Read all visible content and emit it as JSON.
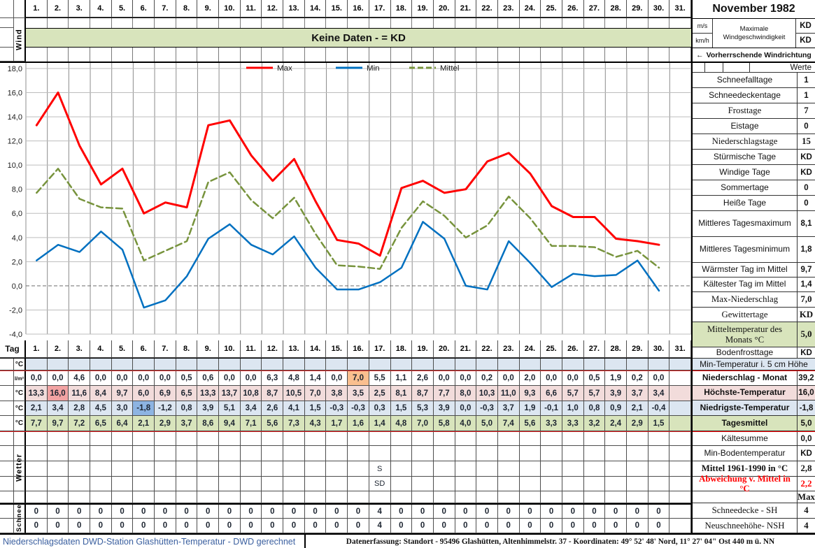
{
  "title": "November 1982",
  "colors": {
    "max_line": "#ff0000",
    "min_line": "#0070c0",
    "mittel_line": "#77933c",
    "banner_green": "#d8e4bc",
    "row_blue": "#dce6f1",
    "row_pink": "#f2dcdb",
    "row_green": "#d8e4bc",
    "hl_red": "#f2a3a3",
    "hl_blue": "#8db4e2",
    "hl_orange": "#fabf8f",
    "footer_blue": "#3a5f9f",
    "warn_red": "#ff0000"
  },
  "top": {
    "wind_label": "Wind",
    "banner": "Keine Daten -  = KD",
    "days": [
      "1.",
      "2.",
      "3.",
      "4.",
      "5.",
      "6.",
      "7.",
      "8.",
      "9.",
      "10.",
      "11.",
      "12.",
      "13.",
      "14.",
      "15.",
      "16.",
      "17.",
      "18.",
      "19.",
      "20.",
      "21.",
      "22.",
      "23.",
      "24.",
      "25.",
      "26.",
      "27.",
      "28.",
      "29.",
      "30.",
      "31."
    ]
  },
  "sidebar_top": {
    "title": "November 1982",
    "unit1": "m/s",
    "unit2": "km/h",
    "wind_label": "Maximale Windgeschwindigkeit",
    "value1": "KD",
    "value2": "KD",
    "arrow": "←",
    "direction": "Vorherrschende Windrichtung"
  },
  "sidebar": {
    "werte_header": "Werte",
    "stats": [
      {
        "label": "Schneefalltage",
        "value": "1"
      },
      {
        "label": "Schneedeckentage",
        "value": "1"
      },
      {
        "label": "Frosttage",
        "value": "7",
        "serif": true
      },
      {
        "label": "Eistage",
        "value": "0"
      },
      {
        "label": "Niederschlagstage",
        "value": "15",
        "serif": true
      },
      {
        "label": "Stürmische Tage",
        "value": "KD"
      },
      {
        "label": "Windige Tage",
        "value": "KD"
      },
      {
        "label": "Sommertage",
        "value": "0"
      },
      {
        "label": "Heiße Tage",
        "value": "0"
      },
      {
        "label": "Mittleres Tagesmaximum",
        "value": "8,1"
      },
      {
        "label": "Mittleres Tagesminimum",
        "value": "1,8"
      },
      {
        "label": "Wärmster Tag im Mittel",
        "value": "9,7"
      },
      {
        "label": "Kältester Tag im Mittel",
        "value": "1,4"
      },
      {
        "label": "Max-Niederschlag",
        "value": "7,0",
        "serif": true
      },
      {
        "label": "Gewittertage",
        "value": "KD",
        "serif": true
      },
      {
        "label": "Mitteltemperatur des Monats °C",
        "value": "5,0",
        "bg": "green",
        "serif": true
      },
      {
        "label": "Bodenfrosttage",
        "value": "KD"
      },
      {
        "label": "Min-Temperatur i. 5 cm Höhe",
        "full": true,
        "bg": "blue"
      },
      {
        "label": "Niederschlag - Monat",
        "value": "39,2",
        "red_top": true,
        "bold": true
      },
      {
        "label": "Höchste-Temperatur",
        "value": "16,0",
        "bg": "pink",
        "bold": true
      },
      {
        "label": "Niedrigste-Temperatur",
        "value": "-1,8",
        "bg": "blue",
        "bold": true
      },
      {
        "label": "Tagesmittel",
        "value": "5,0",
        "bg": "green",
        "bold": true
      },
      {
        "label": "Kältesumme",
        "value": "0,0",
        "red_top": true
      },
      {
        "label": "Min-Bodentemperatur",
        "value": "KD"
      },
      {
        "label": "Mittel 1961-1990 in °C",
        "value": "2,8",
        "serif": true,
        "bold": true
      },
      {
        "label": "Abweichung v. Mittel in °C",
        "value": "2,2",
        "serif": true,
        "bold": true,
        "red": true
      },
      {
        "label": "",
        "value": "Max",
        "serif": true,
        "bold": true
      },
      {
        "label": "Schneedecke -  SH",
        "value": "4",
        "serif": true
      },
      {
        "label": "Neuschneehöhe- NSH",
        "value": "4",
        "serif": true
      }
    ]
  },
  "chart_data": {
    "type": "line",
    "x": [
      1,
      2,
      3,
      4,
      5,
      6,
      7,
      8,
      9,
      10,
      11,
      12,
      13,
      14,
      15,
      16,
      17,
      18,
      19,
      20,
      21,
      22,
      23,
      24,
      25,
      26,
      27,
      28,
      29,
      30
    ],
    "series": [
      {
        "name": "Max",
        "color": "#ff0000",
        "dash": false,
        "values": [
          13.3,
          16.0,
          11.6,
          8.4,
          9.7,
          6.0,
          6.9,
          6.5,
          13.3,
          13.7,
          10.8,
          8.7,
          10.5,
          7.0,
          3.8,
          3.5,
          2.5,
          8.1,
          8.7,
          7.7,
          8.0,
          10.3,
          11.0,
          9.3,
          6.6,
          5.7,
          5.7,
          3.9,
          3.7,
          3.4
        ]
      },
      {
        "name": "Min",
        "color": "#0070c0",
        "dash": false,
        "values": [
          2.1,
          3.4,
          2.8,
          4.5,
          3.0,
          -1.8,
          -1.2,
          0.8,
          3.9,
          5.1,
          3.4,
          2.6,
          4.1,
          1.5,
          -0.3,
          -0.3,
          0.3,
          1.5,
          5.3,
          3.9,
          0.0,
          -0.3,
          3.7,
          1.9,
          -0.1,
          1.0,
          0.8,
          0.9,
          2.1,
          -0.4
        ]
      },
      {
        "name": "Mittel",
        "color": "#77933c",
        "dash": true,
        "values": [
          7.7,
          9.7,
          7.2,
          6.5,
          6.4,
          2.1,
          2.9,
          3.7,
          8.6,
          9.4,
          7.1,
          5.6,
          7.3,
          4.3,
          1.7,
          1.6,
          1.4,
          4.8,
          7.0,
          5.8,
          4.0,
          5.0,
          7.4,
          5.6,
          3.3,
          3.3,
          3.2,
          2.4,
          2.9,
          1.5
        ]
      }
    ],
    "ylim": [
      -4,
      18
    ],
    "ytick_step": 2,
    "ytick_labels": [
      "18,0",
      "16,0",
      "14,0",
      "12,0",
      "10,0",
      "8,0",
      "6,0",
      "4,0",
      "2,0",
      "0,0",
      "-2,0",
      "-4,0"
    ],
    "x_columns": 31,
    "grid": true,
    "legend_position": "top-center"
  },
  "table": {
    "tag_label": "Tag",
    "unit_temp": "°C",
    "unit_precip": "l/m²",
    "wetter_label": "Wetter",
    "schnee_label": "Schnee",
    "days": [
      "1.",
      "2.",
      "3.",
      "4.",
      "5.",
      "6.",
      "7.",
      "8.",
      "9.",
      "10.",
      "11.",
      "12.",
      "13.",
      "14.",
      "15.",
      "16.",
      "17.",
      "18.",
      "19.",
      "20.",
      "21.",
      "22.",
      "23.",
      "24.",
      "25.",
      "26.",
      "27.",
      "28.",
      "29.",
      "30.",
      "31."
    ],
    "precip": [
      "0,0",
      "0,0",
      "4,6",
      "0,0",
      "0,0",
      "0,0",
      "0,0",
      "0,5",
      "0,6",
      "0,0",
      "0,0",
      "6,3",
      "4,8",
      "1,4",
      "0,0",
      "7,0",
      "5,5",
      "1,1",
      "2,6",
      "0,0",
      "0,0",
      "0,2",
      "0,0",
      "2,0",
      "0,0",
      "0,0",
      "0,5",
      "1,9",
      "0,2",
      "0,0",
      ""
    ],
    "tmax": [
      "13,3",
      "16,0",
      "11,6",
      "8,4",
      "9,7",
      "6,0",
      "6,9",
      "6,5",
      "13,3",
      "13,7",
      "10,8",
      "8,7",
      "10,5",
      "7,0",
      "3,8",
      "3,5",
      "2,5",
      "8,1",
      "8,7",
      "7,7",
      "8,0",
      "10,3",
      "11,0",
      "9,3",
      "6,6",
      "5,7",
      "5,7",
      "3,9",
      "3,7",
      "3,4",
      ""
    ],
    "tmin": [
      "2,1",
      "3,4",
      "2,8",
      "4,5",
      "3,0",
      "-1,8",
      "-1,2",
      "0,8",
      "3,9",
      "5,1",
      "3,4",
      "2,6",
      "4,1",
      "1,5",
      "-0,3",
      "-0,3",
      "0,3",
      "1,5",
      "5,3",
      "3,9",
      "0,0",
      "-0,3",
      "3,7",
      "1,9",
      "-0,1",
      "1,0",
      "0,8",
      "0,9",
      "2,1",
      "-0,4",
      ""
    ],
    "tmittel": [
      "7,7",
      "9,7",
      "7,2",
      "6,5",
      "6,4",
      "2,1",
      "2,9",
      "3,7",
      "8,6",
      "9,4",
      "7,1",
      "5,6",
      "7,3",
      "4,3",
      "1,7",
      "1,6",
      "1,4",
      "4,8",
      "7,0",
      "5,8",
      "4,0",
      "5,0",
      "7,4",
      "5,6",
      "3,3",
      "3,3",
      "3,2",
      "2,4",
      "2,9",
      "1,5",
      ""
    ],
    "highlights": {
      "precip_day": 16,
      "tmax_day": 2,
      "tmin_day": 6
    },
    "wetter": {
      "rows": 5,
      "entries": [
        {
          "row": 3,
          "day": 17,
          "text": "S"
        },
        {
          "row": 4,
          "day": 17,
          "text": "SD"
        }
      ]
    },
    "schnee_row1": [
      "0",
      "0",
      "0",
      "0",
      "0",
      "0",
      "0",
      "0",
      "0",
      "0",
      "0",
      "0",
      "0",
      "0",
      "0",
      "0",
      "4",
      "0",
      "0",
      "0",
      "0",
      "0",
      "0",
      "0",
      "0",
      "0",
      "0",
      "0",
      "0",
      "0",
      ""
    ],
    "schnee_row2": [
      "0",
      "0",
      "0",
      "0",
      "0",
      "0",
      "0",
      "0",
      "0",
      "0",
      "0",
      "0",
      "0",
      "0",
      "0",
      "0",
      "4",
      "0",
      "0",
      "0",
      "0",
      "0",
      "0",
      "0",
      "0",
      "0",
      "0",
      "0",
      "0",
      "0",
      ""
    ]
  },
  "footer": {
    "left": "Niederschlagsdaten DWD-Station Glashütten-Temperatur -  DWD gerechnet",
    "right": "Datenerfassung:  Standort -  95496 Glashütten, Altenhimmelstr. 37 - Koordinaten:  49° 52' 48' Nord,   11° 27' 04\" Ost   440 m ü. NN"
  }
}
